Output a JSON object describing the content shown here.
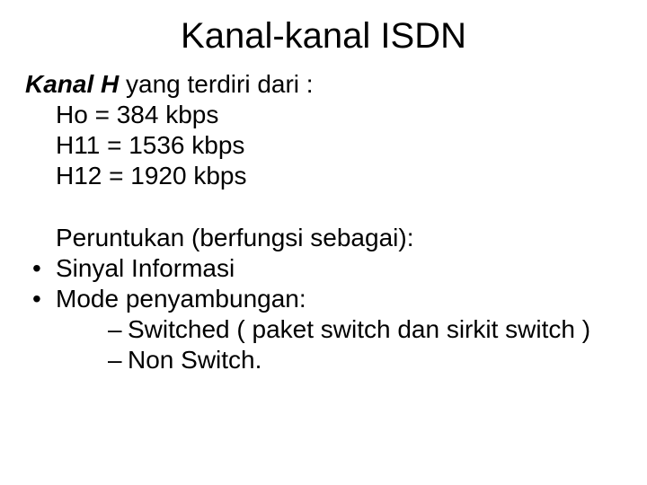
{
  "title": "Kanal-kanal ISDN",
  "kanal_h": {
    "lead_bold_italic": "Kanal H",
    "lead_rest": " yang terdiri dari :",
    "rows": [
      "Ho   = 384 kbps",
      "H11 = 1536 kbps",
      "H12 =  1920 kbps"
    ]
  },
  "peruntukan": {
    "lead": "Peruntukan (berfungsi sebagai):",
    "bullets": [
      {
        "text": "Sinyal Informasi"
      },
      {
        "text": "Mode penyambungan:",
        "sub": [
          "Switched ( paket switch dan sirkit switch )",
          "Non Switch."
        ]
      }
    ]
  },
  "style": {
    "background_color": "#ffffff",
    "text_color": "#000000",
    "title_fontsize": 40,
    "body_fontsize": 28,
    "font_family": "Arial"
  }
}
